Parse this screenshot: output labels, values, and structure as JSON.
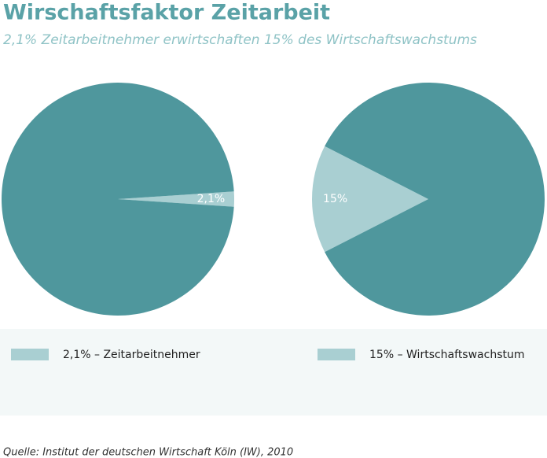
{
  "title": "Wirschaftsfaktor Zeitarbeit",
  "subtitle": "2,1% Zeitarbeitnehmer erwirtschaften 15% des Wirtschaftswachstums",
  "source": "Quelle: Institut der deutschen Wirtschaft Köln (IW), 2010",
  "chart_data": [
    {
      "type": "pie",
      "categories": [
        "2,1% – Zeitarbeitnehmer",
        null
      ],
      "values": [
        2.1,
        97.9
      ],
      "value_labels": [
        "2,1%",
        null
      ],
      "colors": [
        "#a9cfd2",
        "#4f979d"
      ]
    },
    {
      "type": "pie",
      "categories": [
        "15% –  Wirtschaftswachstum",
        null
      ],
      "values": [
        15,
        85
      ],
      "value_labels": [
        "15%",
        null
      ],
      "colors": [
        "#a9cfd2",
        "#4f979d"
      ]
    }
  ]
}
